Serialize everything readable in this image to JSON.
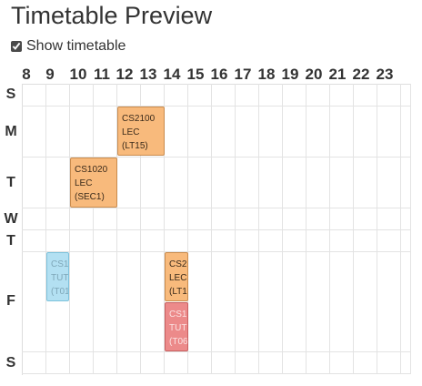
{
  "title": "Timetable Preview",
  "toggle": {
    "label": "Show timetable",
    "checked": true
  },
  "hours": [
    "8",
    "9",
    "10",
    "11",
    "12",
    "13",
    "14",
    "15",
    "16",
    "17",
    "18",
    "19",
    "20",
    "21",
    "22",
    "23"
  ],
  "days": [
    "S",
    "M",
    "T",
    "W",
    "T",
    "F",
    "S"
  ],
  "events": [
    {
      "code": "CS2100",
      "type": "LEC",
      "group": "(LT15)"
    },
    {
      "code": "CS1020",
      "type": "LEC",
      "group": "(SEC1)"
    },
    {
      "code": "CS1",
      "type": "TUT",
      "group": "(T01"
    },
    {
      "code": "CS2",
      "type": "LEC",
      "group": "(LT1"
    },
    {
      "code": "CS1",
      "type": "TUT",
      "group": "(T06"
    }
  ],
  "colors": {
    "lecture": "#f8ba7c",
    "tutorial_blue": "#b3e0f2",
    "tutorial_red": "#ec8a8a",
    "grid_line": "#e3e3e3"
  }
}
